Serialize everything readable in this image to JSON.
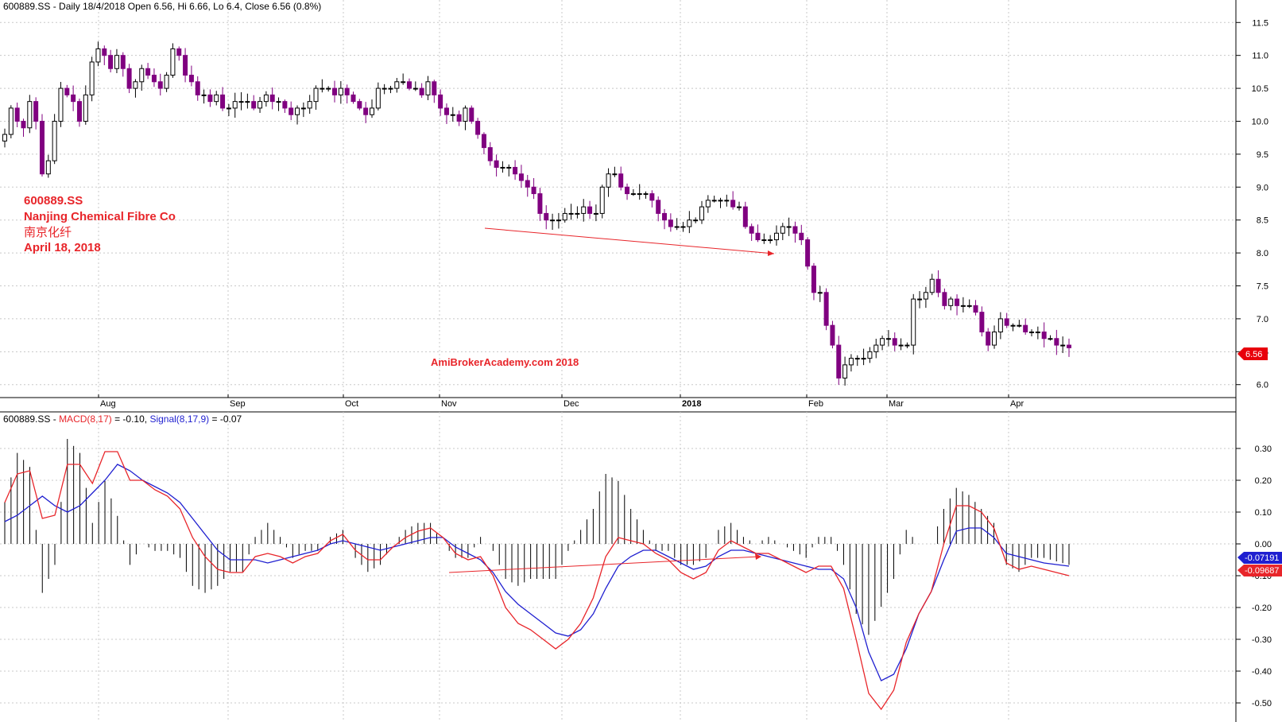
{
  "header": {
    "price_title": "600889.SS - Daily 18/4/2018 Open 6.56, Hi 6.66, Lo 6.4, Close 6.56 (0.8%)",
    "macd_prefix": "600889.SS - ",
    "macd_name": "MACD(8,17)",
    "macd_value": " = -0.10, ",
    "signal_name": "Signal(8,17,9)",
    "signal_value": " = -0.07"
  },
  "annotation": {
    "ticker": "600889.SS",
    "company": "Nanjing Chemical Fibre Co",
    "chinese_name": "南京化纤",
    "date": "April 18, 2018",
    "watermark": "AmiBrokerAcademy.com  2018"
  },
  "badges": {
    "last_close": "6.56",
    "signal_last": "-0.07191",
    "macd_last": "-0.09687"
  },
  "colors": {
    "up_candle": "#ffffff",
    "down_candle": "#800080",
    "macd_line": "#e8252a",
    "signal_line": "#1f1fd0",
    "histogram": "#000000",
    "trendline": "#e8252a",
    "badge_close": "#e8000b",
    "badge_signal": "#1f1fd0",
    "badge_macd": "#e8252a"
  },
  "chart_data": [
    {
      "type": "candlestick",
      "title": "600889.SS - Daily 18/4/2018 Open 6.56, Hi 6.66, Lo 6.4, Close 6.56 (0.8%)",
      "y_ticks": [
        "11.5",
        "11.0",
        "10.5",
        "10.0",
        "9.5",
        "9.0",
        "8.5",
        "8.0",
        "7.5",
        "7.0",
        "6.5",
        "6.0"
      ],
      "ylim": [
        5.9,
        11.6
      ],
      "x_labels": [
        "Aug",
        "Sep",
        "Oct",
        "Nov",
        "Dec",
        "2018",
        "Feb",
        "Mar",
        "Apr"
      ],
      "grid": true,
      "series": [
        {
          "name": "600889.SS",
          "close": [
            9.8,
            10.2,
            10.0,
            9.9,
            10.3,
            10.0,
            9.2,
            9.4,
            10.0,
            10.5,
            10.4,
            10.3,
            10.0,
            10.4,
            10.9,
            11.1,
            11.0,
            10.8,
            11.0,
            10.8,
            10.5,
            10.6,
            10.8,
            10.7,
            10.6,
            10.5,
            10.7,
            11.1,
            11.0,
            10.7,
            10.6,
            10.4,
            10.4,
            10.3,
            10.4,
            10.2,
            10.2,
            10.3,
            10.3,
            10.3,
            10.2,
            10.3,
            10.4,
            10.3,
            10.3,
            10.2,
            10.1,
            10.2,
            10.2,
            10.3,
            10.5,
            10.5,
            10.5,
            10.4,
            10.5,
            10.4,
            10.3,
            10.2,
            10.1,
            10.2,
            10.5,
            10.5,
            10.5,
            10.6,
            10.6,
            10.5,
            10.5,
            10.4,
            10.6,
            10.4,
            10.2,
            10.1,
            10.1,
            10.0,
            10.2,
            10.0,
            9.8,
            9.6,
            9.4,
            9.3,
            9.3,
            9.3,
            9.2,
            9.1,
            9.0,
            8.9,
            8.6,
            8.5,
            8.5,
            8.5,
            8.6,
            8.6,
            8.6,
            8.7,
            8.6,
            8.6,
            9.0,
            9.2,
            9.2,
            9.0,
            8.9,
            8.9,
            8.9,
            8.9,
            8.8,
            8.6,
            8.5,
            8.4,
            8.4,
            8.4,
            8.5,
            8.5,
            8.7,
            8.8,
            8.8,
            8.8,
            8.8,
            8.7,
            8.7,
            8.4,
            8.3,
            8.2,
            8.2,
            8.2,
            8.3,
            8.4,
            8.4,
            8.3,
            8.2,
            7.8,
            7.4,
            7.4,
            6.9,
            6.6,
            6.1,
            6.3,
            6.4,
            6.4,
            6.4,
            6.5,
            6.6,
            6.7,
            6.7,
            6.6,
            6.6,
            6.6,
            7.3,
            7.3,
            7.4,
            7.6,
            7.4,
            7.2,
            7.3,
            7.2,
            7.2,
            7.2,
            7.1,
            6.8,
            6.6,
            6.8,
            7.0,
            6.9,
            6.9,
            6.9,
            6.8,
            6.8,
            6.8,
            6.7,
            6.7,
            6.6,
            6.6,
            6.56
          ]
        }
      ]
    },
    {
      "type": "line",
      "title": "600889.SS - MACD(8,17) = -0.10, Signal(8,17,9) = -0.07",
      "y_ticks": [
        "0.30",
        "0.20",
        "0.10",
        "0.00",
        "-0.10",
        "-0.20",
        "-0.30",
        "-0.40",
        "-0.50"
      ],
      "ylim": [
        -0.56,
        0.36
      ],
      "grid": true,
      "series": [
        {
          "name": "MACD(8,17)",
          "values": [
            0.13,
            0.22,
            0.23,
            0.08,
            0.09,
            0.25,
            0.25,
            0.19,
            0.29,
            0.29,
            0.2,
            0.2,
            0.17,
            0.15,
            0.11,
            0.02,
            -0.04,
            -0.08,
            -0.09,
            -0.09,
            -0.04,
            -0.03,
            -0.04,
            -0.06,
            -0.04,
            -0.03,
            0.01,
            0.03,
            -0.02,
            -0.05,
            -0.05,
            -0.01,
            0.02,
            0.04,
            0.05,
            0.02,
            -0.03,
            -0.05,
            -0.04,
            -0.1,
            -0.2,
            -0.25,
            -0.27,
            -0.3,
            -0.33,
            -0.3,
            -0.25,
            -0.17,
            -0.04,
            0.02,
            0.01,
            0.0,
            -0.03,
            -0.05,
            -0.09,
            -0.11,
            -0.09,
            -0.02,
            0.01,
            -0.01,
            -0.03,
            -0.03,
            -0.05,
            -0.07,
            -0.09,
            -0.07,
            -0.07,
            -0.14,
            -0.3,
            -0.47,
            -0.52,
            -0.46,
            -0.31,
            -0.22,
            -0.15,
            0.0,
            0.12,
            0.12,
            0.1,
            0.05,
            -0.06,
            -0.08,
            -0.07,
            -0.08,
            -0.09,
            -0.1
          ]
        },
        {
          "name": "Signal(8,17,9)",
          "values": [
            0.07,
            0.09,
            0.12,
            0.15,
            0.12,
            0.1,
            0.12,
            0.16,
            0.2,
            0.25,
            0.23,
            0.2,
            0.18,
            0.16,
            0.13,
            0.08,
            0.03,
            -0.02,
            -0.05,
            -0.05,
            -0.05,
            -0.06,
            -0.05,
            -0.04,
            -0.03,
            -0.02,
            0.0,
            0.01,
            0.0,
            -0.01,
            -0.02,
            -0.01,
            0.0,
            0.01,
            0.02,
            0.02,
            -0.01,
            -0.03,
            -0.05,
            -0.09,
            -0.15,
            -0.19,
            -0.22,
            -0.25,
            -0.28,
            -0.29,
            -0.27,
            -0.22,
            -0.14,
            -0.07,
            -0.04,
            -0.02,
            -0.02,
            -0.04,
            -0.06,
            -0.08,
            -0.07,
            -0.04,
            -0.02,
            -0.02,
            -0.03,
            -0.04,
            -0.05,
            -0.06,
            -0.07,
            -0.08,
            -0.08,
            -0.11,
            -0.2,
            -0.34,
            -0.43,
            -0.41,
            -0.33,
            -0.22,
            -0.15,
            -0.05,
            0.04,
            0.05,
            0.05,
            0.02,
            -0.03,
            -0.04,
            -0.05,
            -0.06,
            -0.065,
            -0.07
          ]
        }
      ]
    }
  ]
}
